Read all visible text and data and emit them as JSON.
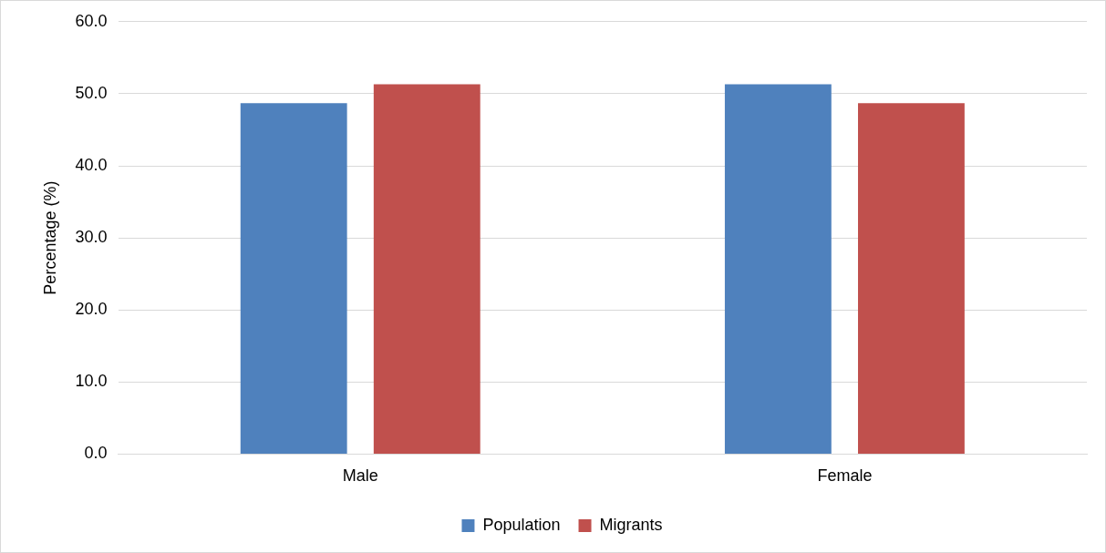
{
  "chart_data": {
    "type": "bar",
    "ylabel": "Percentage (%)",
    "categories": [
      "Male",
      "Female"
    ],
    "series": [
      {
        "name": "Population",
        "color": "#4f81bd",
        "values": [
          48.7,
          51.3
        ]
      },
      {
        "name": "Migrants",
        "color": "#c0504d",
        "values": [
          51.3,
          48.7
        ]
      }
    ],
    "ylim": [
      0,
      60
    ],
    "yticks": [
      {
        "value": 0,
        "label": "0.0"
      },
      {
        "value": 10,
        "label": "10.0"
      },
      {
        "value": 20,
        "label": "20.0"
      },
      {
        "value": 30,
        "label": "30.0"
      },
      {
        "value": 40,
        "label": "40.0"
      },
      {
        "value": 50,
        "label": "50.0"
      },
      {
        "value": 60,
        "label": "60.0"
      }
    ],
    "grid": "y",
    "legend": "bottom"
  }
}
